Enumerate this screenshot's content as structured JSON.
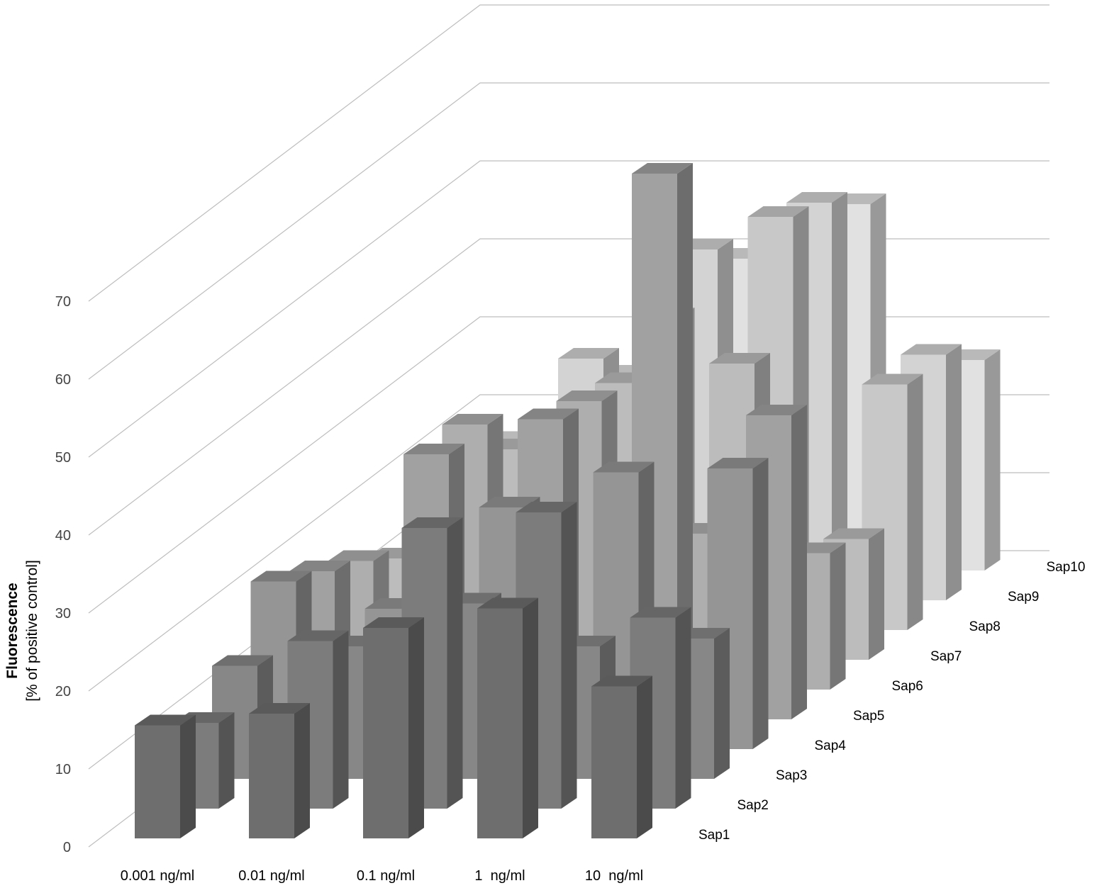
{
  "chart_data": {
    "type": "bar",
    "subtype": "3d-column",
    "ylabel_main": "Fluorescence",
    "ylabel_sub": "[% of positive control]",
    "ylim": [
      0,
      70
    ],
    "yticks": [
      0,
      10,
      20,
      30,
      40,
      50,
      60,
      70
    ],
    "grid": true,
    "categories": [
      "0.001 ng/ml",
      "0.01 ng/ml",
      "0.1 ng/ml",
      "1  ng/ml",
      "10  ng/ml"
    ],
    "series": [
      {
        "name": "Sap1",
        "color": "#6e6e6e",
        "values": [
          14.5,
          16,
          27,
          29.5,
          19.5
        ]
      },
      {
        "name": "Sap2",
        "color": "#7c7c7c",
        "values": [
          11,
          21.5,
          36,
          38,
          24.5
        ]
      },
      {
        "name": "Sap3",
        "color": "#878787",
        "values": [
          14.5,
          17,
          22.5,
          17,
          18
        ]
      },
      {
        "name": "Sap4",
        "color": "#959595",
        "values": [
          21.5,
          18,
          31,
          35.5,
          36
        ]
      },
      {
        "name": "Sap5",
        "color": "#a1a1a1",
        "values": [
          19,
          34,
          38.5,
          70,
          39
        ]
      },
      {
        "name": "Sap6",
        "color": "#aeaeae",
        "values": [
          16.5,
          34,
          37,
          20,
          17.5
        ]
      },
      {
        "name": "Sap7",
        "color": "#bcbcbc",
        "values": [
          13,
          27,
          35.5,
          38,
          15.5
        ]
      },
      {
        "name": "Sap8",
        "color": "#c8c8c8",
        "values": [
          15.5,
          27,
          40,
          53,
          31.5
        ]
      },
      {
        "name": "Sap9",
        "color": "#d3d3d3",
        "values": [
          17.5,
          31,
          45,
          51,
          31.5
        ]
      },
      {
        "name": "Sap10",
        "color": "#e1e1e1",
        "values": [
          16.5,
          25,
          40,
          47,
          27
        ]
      }
    ]
  }
}
